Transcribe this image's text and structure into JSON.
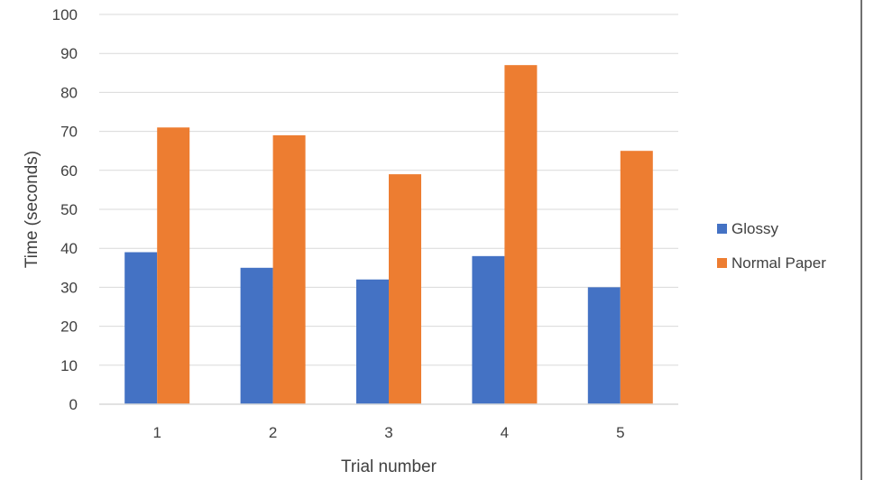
{
  "chart_data": {
    "type": "bar",
    "title": "",
    "xlabel": "Trial number",
    "ylabel": "Time (seconds)",
    "categories": [
      "1",
      "2",
      "3",
      "4",
      "5"
    ],
    "series": [
      {
        "name": "Glossy",
        "values": [
          39,
          35,
          32,
          38,
          30
        ],
        "color": "#4472C4"
      },
      {
        "name": "Normal Paper",
        "values": [
          71,
          69,
          59,
          87,
          65
        ],
        "color": "#ED7D31"
      }
    ],
    "ylim": [
      0,
      100
    ],
    "yticks": [
      "0",
      "10",
      "20",
      "30",
      "40",
      "50",
      "60",
      "70",
      "80",
      "90",
      "100"
    ],
    "grid": true,
    "legend_position": "right",
    "colors": {
      "gridline": "#D9D9D9",
      "text": "#404040",
      "border": "#404040"
    }
  }
}
